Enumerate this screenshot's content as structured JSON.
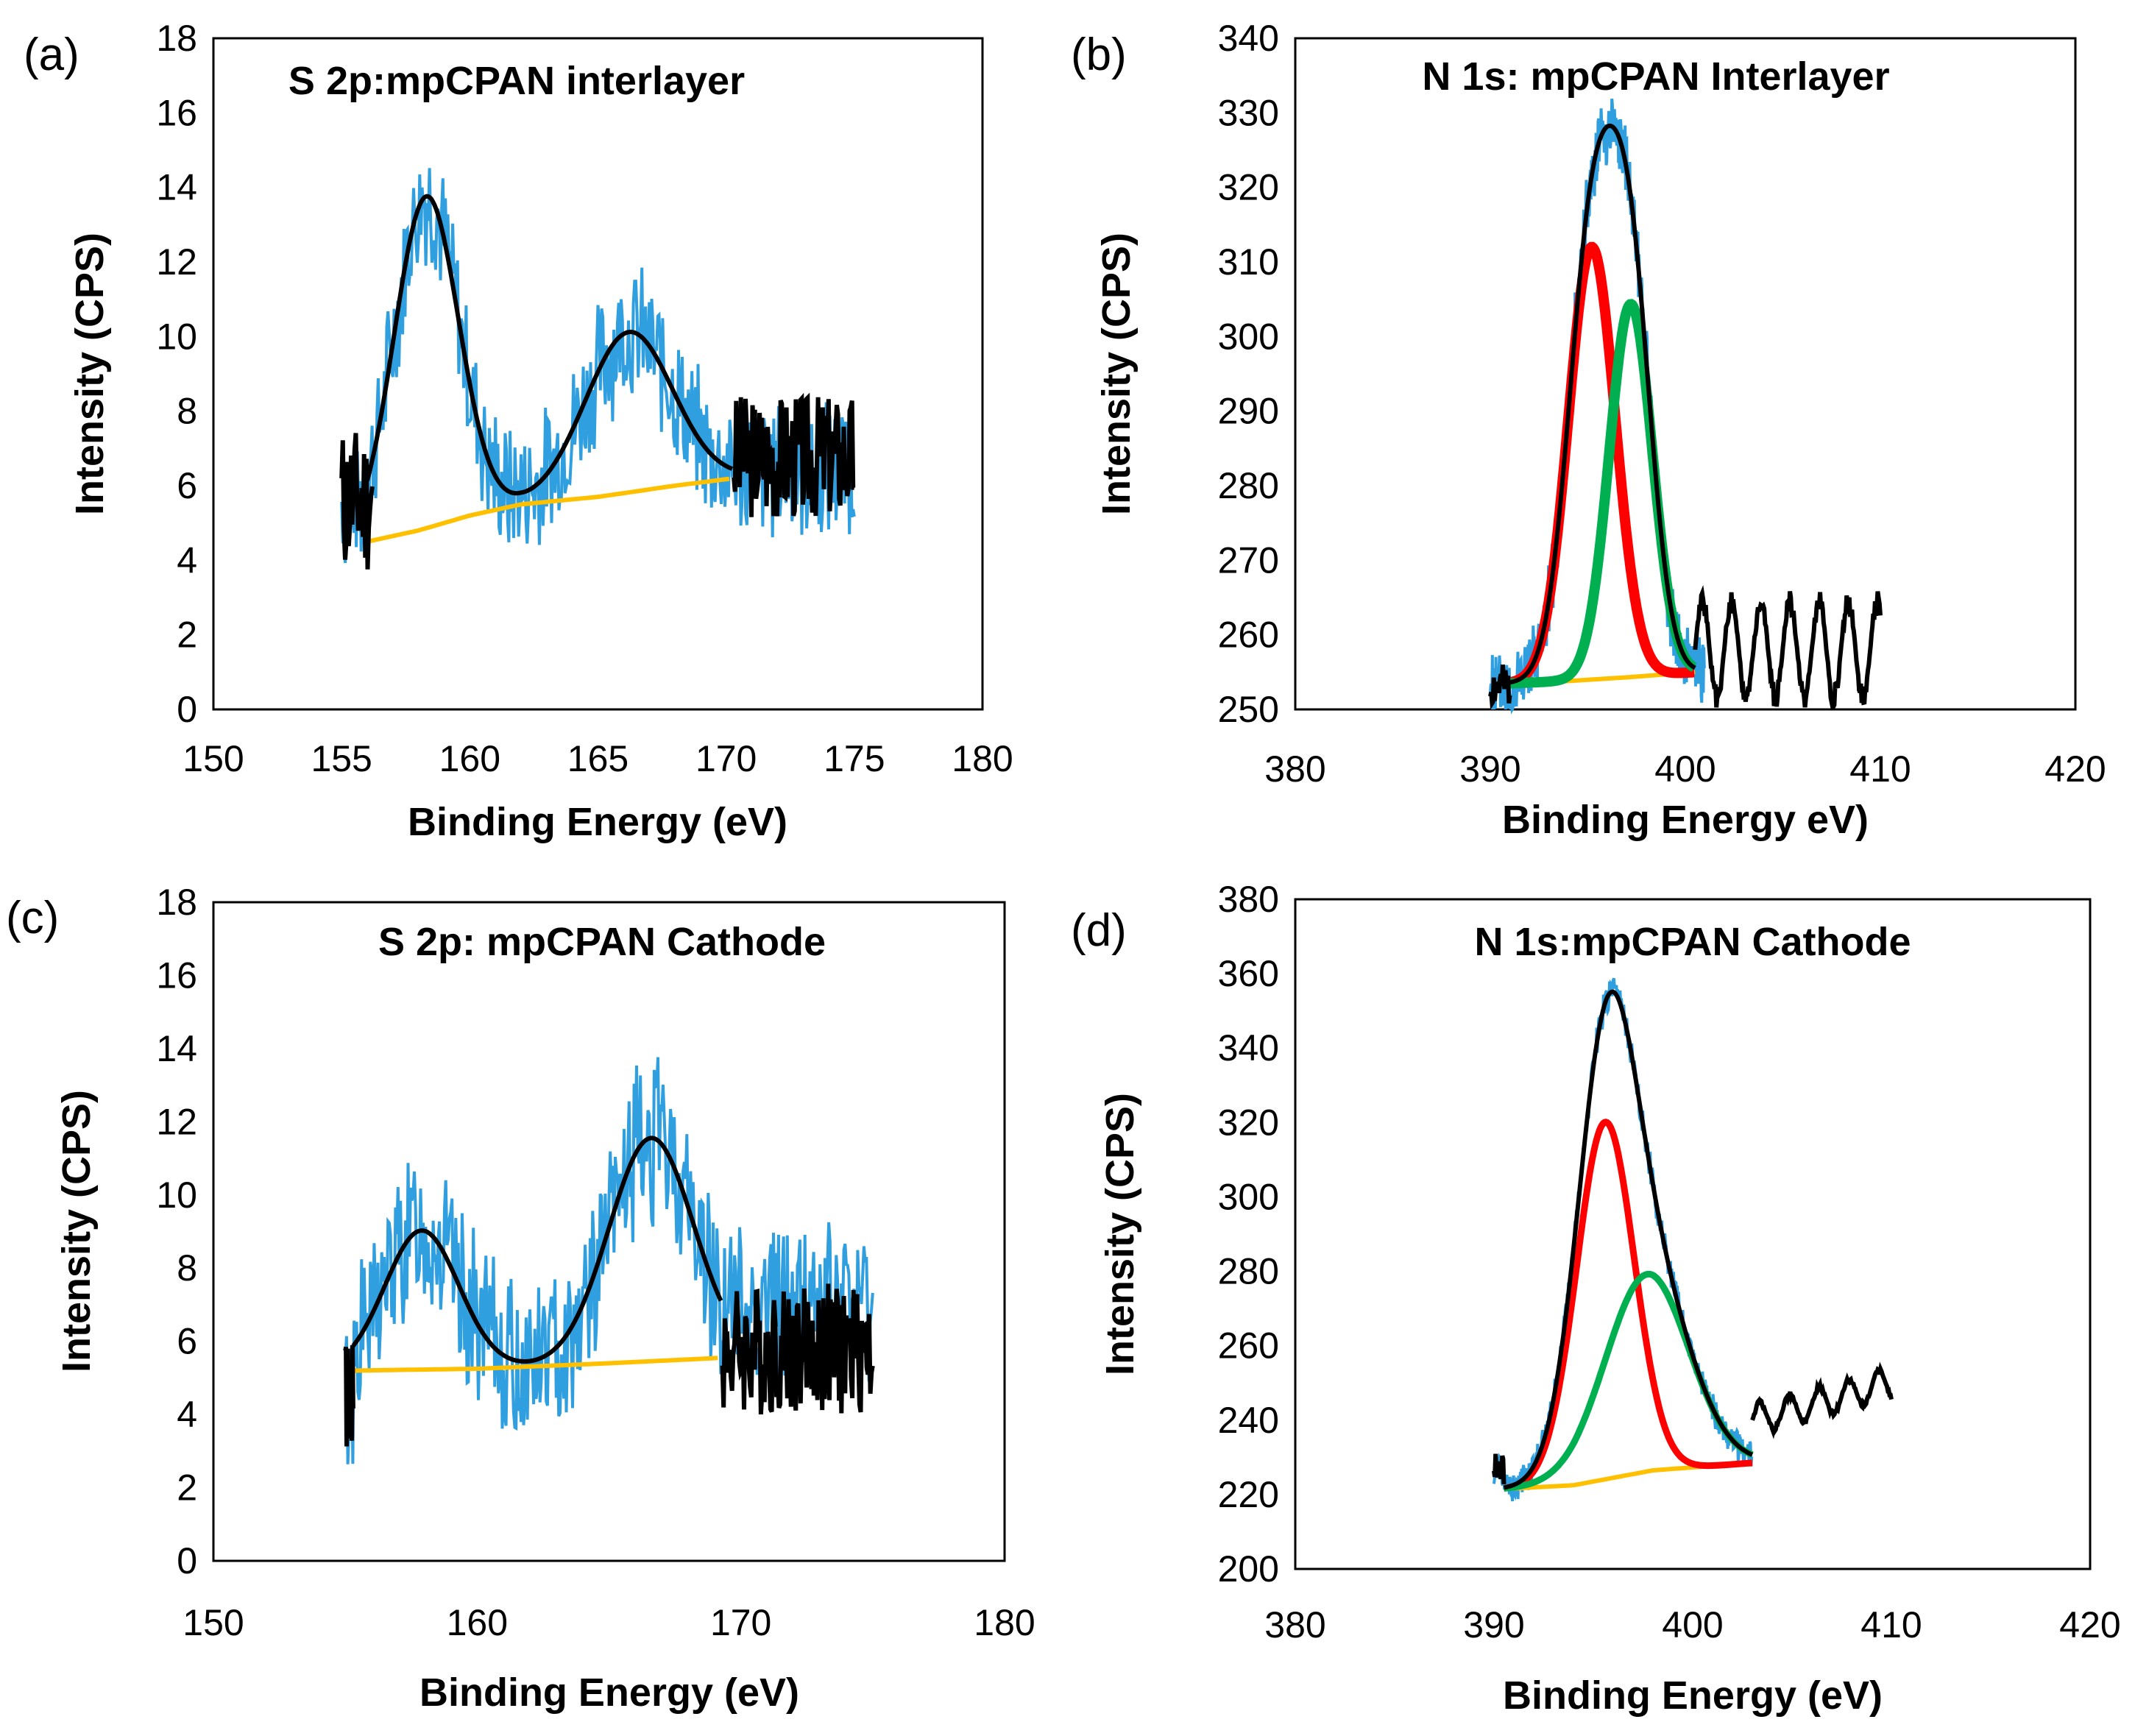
{
  "figure": {
    "colors": {
      "raw": "#2f9fe0",
      "envelope": "#000000",
      "background": "#ffc000",
      "component1": "#ff0000",
      "component2": "#00b050"
    }
  },
  "chart_data": [
    {
      "type": "line",
      "panel": "(a)",
      "title": "S 2p:mpCPAN  interlayer",
      "xlabel": "Binding Energy (eV)",
      "ylabel": "Intensity (CPS)",
      "xlim": [
        150,
        180
      ],
      "ylim": [
        0,
        18
      ],
      "xticks": [
        150,
        155,
        160,
        165,
        170,
        175,
        180
      ],
      "yticks": [
        0,
        2,
        4,
        6,
        8,
        10,
        12,
        14,
        16,
        18
      ],
      "raw": {
        "xrange": [
          155,
          175
        ],
        "fitrange": [
          156,
          170.3
        ],
        "noise": 1.3,
        "seed": 7
      },
      "background": {
        "points": [
          [
            156,
            4.5
          ],
          [
            158,
            4.8
          ],
          [
            160,
            5.2
          ],
          [
            162,
            5.5
          ],
          [
            165,
            5.7
          ],
          [
            168,
            6.0
          ],
          [
            170.3,
            6.2
          ]
        ]
      },
      "envelope_peaks": [
        {
          "center": 158.3,
          "height": 8.9,
          "sigma": 1.25
        },
        {
          "center": 166.2,
          "height": 4.3,
          "sigma": 1.7
        }
      ],
      "components": [],
      "tail": {
        "xrange": [
          170.3,
          175
        ],
        "mean": 6.8,
        "amp": 1.7,
        "seed": 3
      },
      "head": {
        "xrange": [
          155,
          156.2
        ],
        "mean": 5.6,
        "amp": 2.0,
        "seed": 11
      }
    },
    {
      "type": "line",
      "panel": "(b)",
      "title": "N 1s: mpCPAN  Interlayer",
      "xlabel": "Binding Energy eV)",
      "ylabel": "Intensity (CPS)",
      "xlim": [
        380,
        420
      ],
      "ylim": [
        250,
        340
      ],
      "xticks": [
        380,
        390,
        400,
        410,
        420
      ],
      "yticks": [
        250,
        260,
        270,
        280,
        290,
        300,
        310,
        320,
        330,
        340
      ],
      "raw": {
        "xrange": [
          390,
          401
        ],
        "fitrange": [
          391,
          400.5
        ],
        "noise": 3.5,
        "seed": 5
      },
      "background": {
        "points": [
          [
            391,
            253.5
          ],
          [
            394,
            253.8
          ],
          [
            397,
            254.3
          ],
          [
            400.5,
            255.0
          ]
        ]
      },
      "envelope_peaks": [
        {
          "center": 395.2,
          "height": 58,
          "sigma": 1.2
        },
        {
          "center": 397.2,
          "height": 50,
          "sigma": 1.1
        }
      ],
      "components": [
        {
          "name": "component1",
          "center": 395.2,
          "height": 58,
          "sigma": 1.2,
          "stroke": 7
        },
        {
          "name": "component2",
          "center": 397.2,
          "height": 50,
          "sigma": 1.1,
          "stroke": 7
        }
      ],
      "tail": {
        "xrange": [
          400.5,
          410
        ],
        "mean": 258,
        "amp": 8,
        "seed": 9,
        "wavy": true
      },
      "head": {
        "xrange": [
          390,
          391
        ],
        "mean": 253,
        "amp": 3,
        "seed": 2
      }
    },
    {
      "type": "line",
      "panel": "(c)",
      "title": "S 2p: mpCPAN  Cathode",
      "xlabel": "Binding Energy (eV)",
      "ylabel": "Intensity (CPS)",
      "xlim": [
        150,
        180
      ],
      "ylim": [
        0,
        18
      ],
      "xticks": [
        150,
        160,
        170,
        180
      ],
      "yticks": [
        0,
        2,
        4,
        6,
        8,
        10,
        12,
        14,
        16,
        18
      ],
      "raw": {
        "xrange": [
          155,
          175
        ],
        "fitrange": [
          155.3,
          169.3
        ],
        "noise": 1.6,
        "seed": 13
      },
      "background": {
        "points": [
          [
            155.3,
            5.2
          ],
          [
            160,
            5.25
          ],
          [
            165,
            5.4
          ],
          [
            169.3,
            5.55
          ]
        ]
      },
      "envelope_peaks": [
        {
          "center": 157.9,
          "height": 3.8,
          "sigma": 1.4
        },
        {
          "center": 166.6,
          "height": 6.1,
          "sigma": 1.6
        }
      ],
      "components": [],
      "tail": {
        "xrange": [
          169.3,
          175
        ],
        "mean": 5.8,
        "amp": 1.8,
        "seed": 4
      },
      "head": {
        "xrange": [
          155,
          155.3
        ],
        "mean": 4.5,
        "amp": 1.6,
        "seed": 17
      }
    },
    {
      "type": "line",
      "panel": "(d)",
      "title": "N 1s:mpCPAN  Cathode",
      "xlabel": "Binding Energy (eV)",
      "ylabel": "Intensity (CPS)",
      "xlim": [
        380,
        420
      ],
      "ylim": [
        200,
        380
      ],
      "xticks": [
        380,
        390,
        400,
        410,
        420
      ],
      "yticks": [
        200,
        220,
        240,
        260,
        280,
        300,
        320,
        340,
        360,
        380
      ],
      "raw": {
        "xrange": [
          390,
          403
        ],
        "fitrange": [
          390.5,
          403
        ],
        "noise": 3.0,
        "seed": 21
      },
      "background": {
        "points": [
          [
            390.5,
            221.5
          ],
          [
            394,
            222.5
          ],
          [
            398,
            226.5
          ],
          [
            403,
            228.5
          ]
        ]
      },
      "envelope_peaks": [
        {
          "center": 395.6,
          "height": 96,
          "sigma": 1.45
        },
        {
          "center": 397.7,
          "height": 53,
          "sigma": 2.1
        }
      ],
      "components": [
        {
          "name": "component1",
          "center": 395.6,
          "height": 96,
          "sigma": 1.45,
          "stroke": 4.5
        },
        {
          "name": "component2",
          "center": 397.7,
          "height": 53,
          "sigma": 2.1,
          "stroke": 4.5
        }
      ],
      "tail": {
        "xrange": [
          403,
          410
        ],
        "mean": 240,
        "amp": 5,
        "seed": 6,
        "wavy": true,
        "rise": 10
      },
      "head": {
        "xrange": [
          390,
          390.5
        ],
        "mean": 226,
        "amp": 6,
        "seed": 8
      }
    }
  ]
}
